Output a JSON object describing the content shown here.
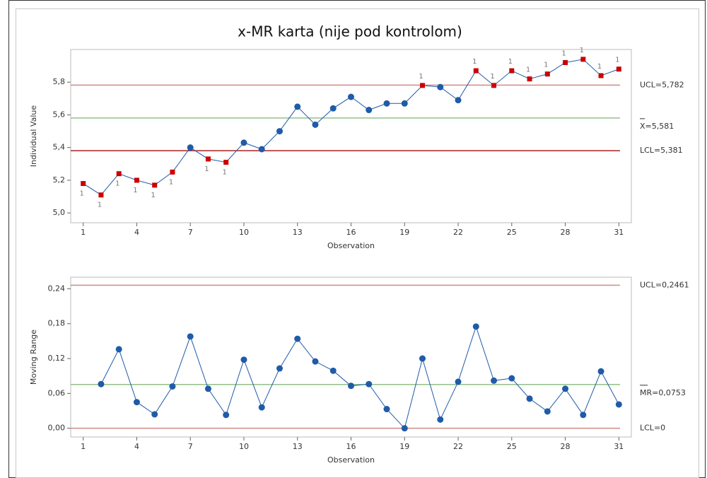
{
  "chart_data": [
    {
      "type": "line",
      "title": "x-MR karta (nije pod kontrolom)",
      "ylabel": "Individual Value",
      "xlabel": "Observation",
      "x": [
        1,
        2,
        3,
        4,
        5,
        6,
        7,
        8,
        9,
        10,
        11,
        12,
        13,
        14,
        15,
        16,
        17,
        18,
        19,
        20,
        21,
        22,
        23,
        24,
        25,
        26,
        27,
        28,
        29,
        30,
        31
      ],
      "series": [
        {
          "color": "#1f5ba8",
          "flag_color": "#cc0000",
          "values": [
            5.18,
            5.11,
            5.24,
            5.2,
            5.17,
            5.25,
            5.4,
            5.33,
            5.31,
            5.43,
            5.39,
            5.5,
            5.65,
            5.54,
            5.64,
            5.71,
            5.63,
            5.67,
            5.67,
            5.78,
            5.77,
            5.69,
            5.87,
            5.78,
            5.87,
            5.82,
            5.85,
            5.92,
            5.94,
            5.84,
            5.88
          ],
          "flags": [
            "1",
            "1",
            "1",
            "1",
            "1",
            "1",
            null,
            "1",
            "1",
            null,
            null,
            null,
            null,
            null,
            null,
            null,
            null,
            null,
            null,
            "1",
            null,
            null,
            "1",
            "1",
            "1",
            "1",
            "1",
            "1",
            "1",
            "1",
            "1"
          ]
        }
      ],
      "control_lines": [
        {
          "value": 5.782,
          "label": "UCL=5,782",
          "color": "#d08a86"
        },
        {
          "value": 5.581,
          "label": "X=5,581",
          "color": "#93c08a"
        },
        {
          "value": 5.381,
          "label": "LCL=5,381",
          "color": "#a82020"
        }
      ],
      "xlim": [
        0.3,
        31.7
      ],
      "ylim": [
        4.94,
        6.0
      ],
      "xticks": [
        1,
        4,
        7,
        10,
        13,
        16,
        19,
        22,
        25,
        28,
        31
      ],
      "yticks": [
        {
          "value": 5.0,
          "label": "5,0"
        },
        {
          "value": 5.2,
          "label": "5,2"
        },
        {
          "value": 5.4,
          "label": "5,4"
        },
        {
          "value": 5.6,
          "label": "5,6"
        },
        {
          "value": 5.8,
          "label": "5,8"
        }
      ]
    },
    {
      "type": "line",
      "ylabel": "Moving Range",
      "xlabel": "Observation",
      "x": [
        1,
        2,
        3,
        4,
        5,
        6,
        7,
        8,
        9,
        10,
        11,
        12,
        13,
        14,
        15,
        16,
        17,
        18,
        19,
        20,
        21,
        22,
        23,
        24,
        25,
        26,
        27,
        28,
        29,
        30,
        31
      ],
      "series": [
        {
          "color": "#1f5ba8",
          "values": [
            null,
            0.076,
            0.136,
            0.045,
            0.024,
            0.072,
            0.158,
            0.068,
            0.023,
            0.118,
            0.036,
            0.103,
            0.154,
            0.115,
            0.099,
            0.073,
            0.076,
            0.033,
            0,
            0.12,
            0.015,
            0.08,
            0.175,
            0.082,
            0.086,
            0.051,
            0.029,
            0.068,
            0.023,
            0.098,
            0.041
          ]
        }
      ],
      "control_lines": [
        {
          "value": 0.2461,
          "label": "UCL=0,2461",
          "color": "#d08a86"
        },
        {
          "value": 0.0753,
          "label": "MR=0,0753",
          "color": "#93c08a"
        },
        {
          "value": 0,
          "label": "LCL=0",
          "color": "#d08a86"
        }
      ],
      "xlim": [
        0.3,
        31.7
      ],
      "ylim": [
        -0.015,
        0.26
      ],
      "xticks": [
        1,
        4,
        7,
        10,
        13,
        16,
        19,
        22,
        25,
        28,
        31
      ],
      "yticks": [
        {
          "value": 0,
          "label": "0,00"
        },
        {
          "value": 0.06,
          "label": "0,06"
        },
        {
          "value": 0.12,
          "label": "0,12"
        },
        {
          "value": 0.18,
          "label": "0,18"
        },
        {
          "value": 0.24,
          "label": "0,24"
        }
      ]
    }
  ]
}
